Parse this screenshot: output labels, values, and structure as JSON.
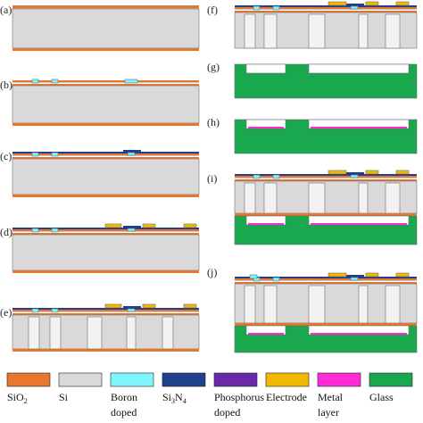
{
  "colors": {
    "sio2": "#e8762d",
    "si": "#d9d9d9",
    "boron": "#7ff5ff",
    "si3n4": "#1f3f8f",
    "phosphorus": "#6a2aa8",
    "electrode": "#f5b800",
    "metal": "#ff2bd6",
    "glass": "#1aa84f",
    "outline": "#6e6e6e"
  },
  "panels": [
    {
      "id": "a",
      "label": "(a)"
    },
    {
      "id": "b",
      "label": "(b)"
    },
    {
      "id": "c",
      "label": "(c)"
    },
    {
      "id": "d",
      "label": "(d)"
    },
    {
      "id": "e",
      "label": "(e)"
    },
    {
      "id": "f",
      "label": "(f)"
    },
    {
      "id": "g",
      "label": "(g)"
    },
    {
      "id": "h",
      "label": "(h)"
    },
    {
      "id": "i",
      "label": "(i)"
    },
    {
      "id": "j",
      "label": "(j)"
    }
  ],
  "legend": [
    {
      "key": "sio2",
      "line1": "SiO",
      "sub": "2",
      "line1b": "",
      "line2": ""
    },
    {
      "key": "si",
      "line1": "Si",
      "sub": "",
      "line1b": "",
      "line2": ""
    },
    {
      "key": "boron",
      "line1": "Boron",
      "sub": "",
      "line1b": "",
      "line2": "doped"
    },
    {
      "key": "si3n4",
      "line1": "Si",
      "sub": "3",
      "line1b": "N",
      "sub2": "4",
      "line2": ""
    },
    {
      "key": "phosphorus",
      "line1": "Phosphorus",
      "sub": "",
      "line1b": "",
      "line2": "doped"
    },
    {
      "key": "electrode",
      "line1": "Electrode",
      "sub": "",
      "line1b": "",
      "line2": ""
    },
    {
      "key": "metal",
      "line1": "Metal",
      "sub": "",
      "line1b": "",
      "line2": "layer"
    },
    {
      "key": "glass",
      "line1": "Glass",
      "sub": "",
      "line1b": "",
      "line2": ""
    }
  ]
}
